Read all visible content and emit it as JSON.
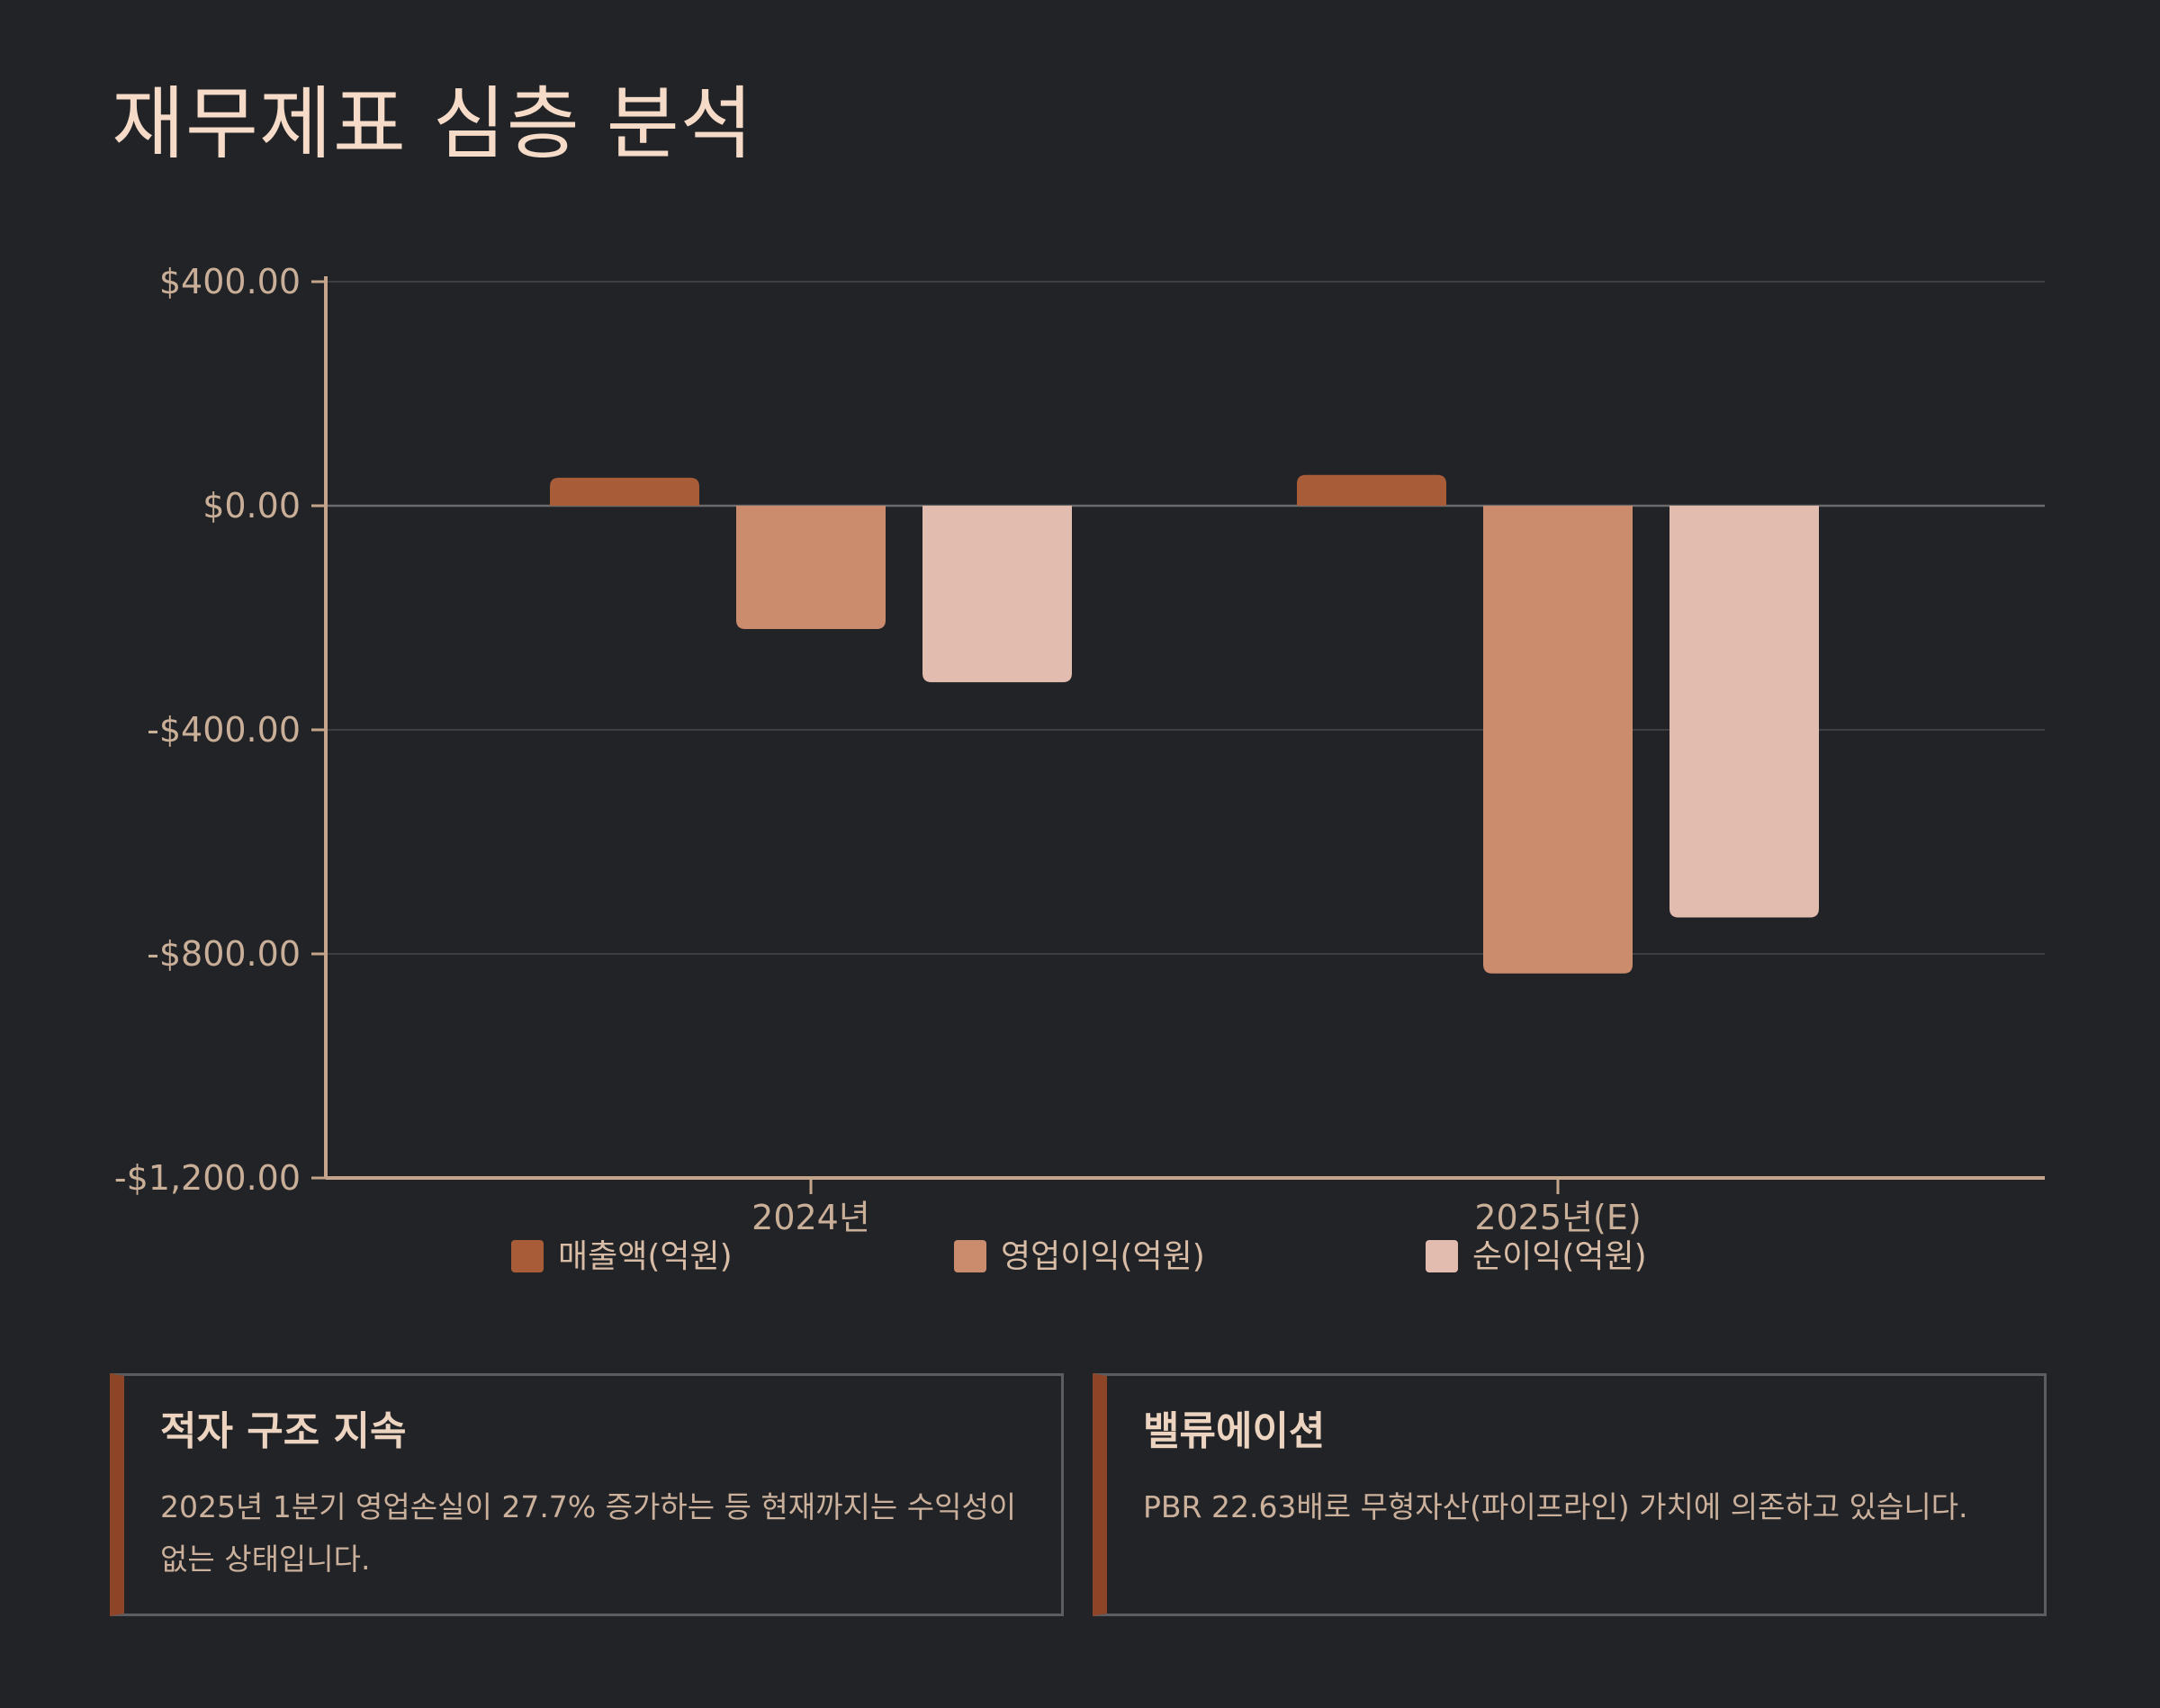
{
  "page": {
    "title": "재무제표 심층 분석"
  },
  "chart_data": {
    "type": "bar",
    "categories": [
      "2024년",
      "2025년(E)"
    ],
    "series": [
      {
        "name": "매출액(억원)",
        "values": [
          50,
          55
        ],
        "color": "#a95c38"
      },
      {
        "name": "영업이익(억원)",
        "values": [
          -220,
          -835
        ],
        "color": "#cb8c6e"
      },
      {
        "name": "순이익(억원)",
        "values": [
          -315,
          -735
        ],
        "color": "#e2bcae"
      }
    ],
    "y_ticks": [
      400,
      0,
      -400,
      -800,
      -1200
    ],
    "y_tick_labels": [
      "$400.00",
      "$0.00",
      "-$400.00",
      "-$800.00",
      "-$1,200.00"
    ],
    "ylim": [
      -1200,
      400
    ],
    "grid": true,
    "legend_position": "bottom"
  },
  "cards": [
    {
      "title": "적자 구조 지속",
      "text": "2025년 1분기 영업손실이 27.7% 증가하는 등 현재까지는 수익성이 없는 상태입니다."
    },
    {
      "title": "밸류에이션",
      "text": "PBR 22.63배로 무형자산(파이프라인) 가치에 의존하고 있습니다."
    }
  ]
}
